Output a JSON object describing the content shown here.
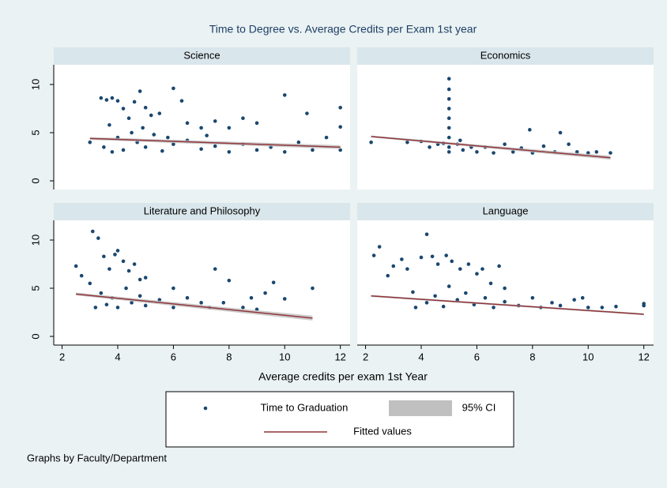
{
  "title": "Time to Degree vs. Average Credits per Exam 1st year",
  "x_label": "Average credits per exam 1st Year",
  "note": "Graphs by Faculty/Department",
  "legend": [
    {
      "name": "Time to Graduation",
      "color": "#1a476f"
    },
    {
      "name": "95% CI",
      "color": "#c0c0c0"
    },
    {
      "name": "Fitted values",
      "color": "#90353b"
    }
  ],
  "chart_data": [
    {
      "type": "scatter",
      "title": "Science",
      "xlim": [
        1.7,
        12.35
      ],
      "ylim": [
        -0.9,
        12.05
      ],
      "yticks": [
        0,
        5,
        10
      ],
      "points": {
        "x": [
          3,
          3.4,
          3.6,
          3.8,
          4,
          4.2,
          4.4,
          4.6,
          4.8,
          5,
          5.2,
          5.5,
          6,
          6.3,
          6.5,
          7,
          7.5,
          8,
          8.5,
          9,
          10,
          10.8,
          11.5,
          12,
          12,
          12,
          3.5,
          3.8,
          4,
          4.2,
          4.5,
          4.7,
          5,
          5.3,
          5.6,
          6,
          6.5,
          7,
          7.5,
          8,
          8.5,
          9,
          9.5,
          10,
          10.5,
          11,
          3.7,
          4.9,
          5.8,
          7.2
        ],
        "y": [
          4,
          8.6,
          8.4,
          8.6,
          8.3,
          7.5,
          6.5,
          8.2,
          9.3,
          7.6,
          6.8,
          7,
          9.6,
          8.3,
          6,
          5.5,
          6.2,
          5.5,
          6.5,
          6,
          8.9,
          7,
          4.5,
          7.6,
          5.6,
          3.2,
          3.5,
          3,
          4.5,
          3.2,
          5,
          4,
          3.5,
          4.8,
          3.1,
          3.8,
          4.2,
          3.3,
          3.6,
          3,
          3.8,
          3.2,
          3.5,
          3,
          4,
          3.2,
          5.8,
          5.5,
          4.5,
          4.7
        ]
      },
      "fit": {
        "x": [
          3,
          12
        ],
        "y": [
          4.4,
          3.5
        ],
        "lower": [
          4.25,
          3.3
        ],
        "upper": [
          4.55,
          3.7
        ]
      }
    },
    {
      "type": "scatter",
      "title": "Economics",
      "xlim": [
        1.7,
        12.35
      ],
      "ylim": [
        -0.9,
        12.05
      ],
      "points": {
        "x": [
          2.2,
          3.5,
          4,
          4.3,
          4.6,
          5,
          5,
          5,
          5,
          5,
          5,
          5,
          5,
          5,
          5.3,
          5.5,
          5.8,
          6,
          6.3,
          6.6,
          7,
          7.3,
          7.6,
          7.9,
          8,
          8.4,
          8.8,
          9,
          9.3,
          9.6,
          10,
          10.3,
          10.8,
          5.4,
          4.8
        ],
        "y": [
          4,
          4,
          4.1,
          3.5,
          3.8,
          10.6,
          9.5,
          8.5,
          7.5,
          6.5,
          5.5,
          4.5,
          3.5,
          3,
          3.8,
          3.2,
          3.5,
          3,
          3.5,
          2.9,
          3.8,
          3,
          3.4,
          5.3,
          2.9,
          3.6,
          3,
          5,
          3.8,
          3,
          2.9,
          3,
          2.9,
          4.2,
          3.9
        ]
      },
      "fit": {
        "x": [
          2.2,
          10.8
        ],
        "y": [
          4.6,
          2.4
        ],
        "lower": [
          4.5,
          2.2
        ],
        "upper": [
          4.7,
          2.6
        ]
      }
    },
    {
      "type": "scatter",
      "title": "Literature and Philosophy",
      "xlim": [
        1.7,
        12.35
      ],
      "ylim": [
        -0.9,
        12.05
      ],
      "yticks": [
        0,
        5,
        10
      ],
      "xticks": [
        2,
        4,
        6,
        8,
        10,
        12
      ],
      "points": {
        "x": [
          2.5,
          2.7,
          3,
          3.1,
          3.3,
          3.5,
          3.7,
          3.9,
          4,
          4.2,
          4.4,
          4.6,
          4.8,
          5,
          3.2,
          3.6,
          4,
          4.5,
          5,
          3.4,
          3.8,
          4.3,
          4.8,
          5.5,
          6,
          6,
          6.5,
          7,
          7.3,
          7.5,
          7.8,
          8,
          8.5,
          8.8,
          9,
          9.3,
          9.6,
          10,
          11
        ],
        "y": [
          7.3,
          6.3,
          5.5,
          10.9,
          10.2,
          8.3,
          7,
          8.5,
          8.9,
          7.8,
          6.8,
          7.5,
          5.9,
          6.1,
          3,
          3.3,
          3,
          3.5,
          3.2,
          4.5,
          4,
          5,
          4.2,
          3.8,
          5,
          3,
          4,
          3.5,
          3,
          7,
          3.5,
          5.8,
          3,
          4,
          2.8,
          4.5,
          5.6,
          3.9,
          5
        ]
      },
      "fit": {
        "x": [
          2.5,
          11
        ],
        "y": [
          4.4,
          1.9
        ],
        "lower": [
          4.25,
          1.65
        ],
        "upper": [
          4.55,
          2.15
        ]
      }
    },
    {
      "type": "scatter",
      "title": "Language",
      "xlim": [
        1.7,
        12.35
      ],
      "ylim": [
        -0.9,
        12.05
      ],
      "xticks": [
        2,
        4,
        6,
        8,
        10,
        12
      ],
      "points": {
        "x": [
          2.3,
          2.5,
          2.8,
          3,
          3.3,
          3.5,
          3.7,
          4,
          4.2,
          4.4,
          4.6,
          4.9,
          5.1,
          5.4,
          5.7,
          6,
          6.2,
          6.5,
          6.8,
          7,
          3.8,
          4.2,
          4.5,
          4.8,
          5,
          5.3,
          5.6,
          5.9,
          6.3,
          6.6,
          7,
          7.5,
          8,
          8.3,
          8.7,
          9,
          9.5,
          9.8,
          10,
          10.5,
          11,
          12,
          12
        ],
        "y": [
          8.4,
          9.3,
          6.3,
          7.3,
          8,
          7,
          4.6,
          8.2,
          10.6,
          8.3,
          7.5,
          8.4,
          7.8,
          7,
          7.5,
          6.5,
          7,
          5.5,
          7.3,
          5,
          3,
          3.5,
          4.2,
          3.1,
          5.2,
          3.8,
          4.5,
          3.3,
          4,
          3,
          3.6,
          3.2,
          4,
          3,
          3.5,
          3.2,
          3.8,
          4,
          3,
          3,
          3.1,
          3.2,
          3.4
        ]
      },
      "fit": {
        "x": [
          2.2,
          12
        ],
        "y": [
          4.2,
          2.3
        ],
        "lower": [
          4.1,
          2.2
        ],
        "upper": [
          4.3,
          2.4
        ]
      }
    }
  ]
}
